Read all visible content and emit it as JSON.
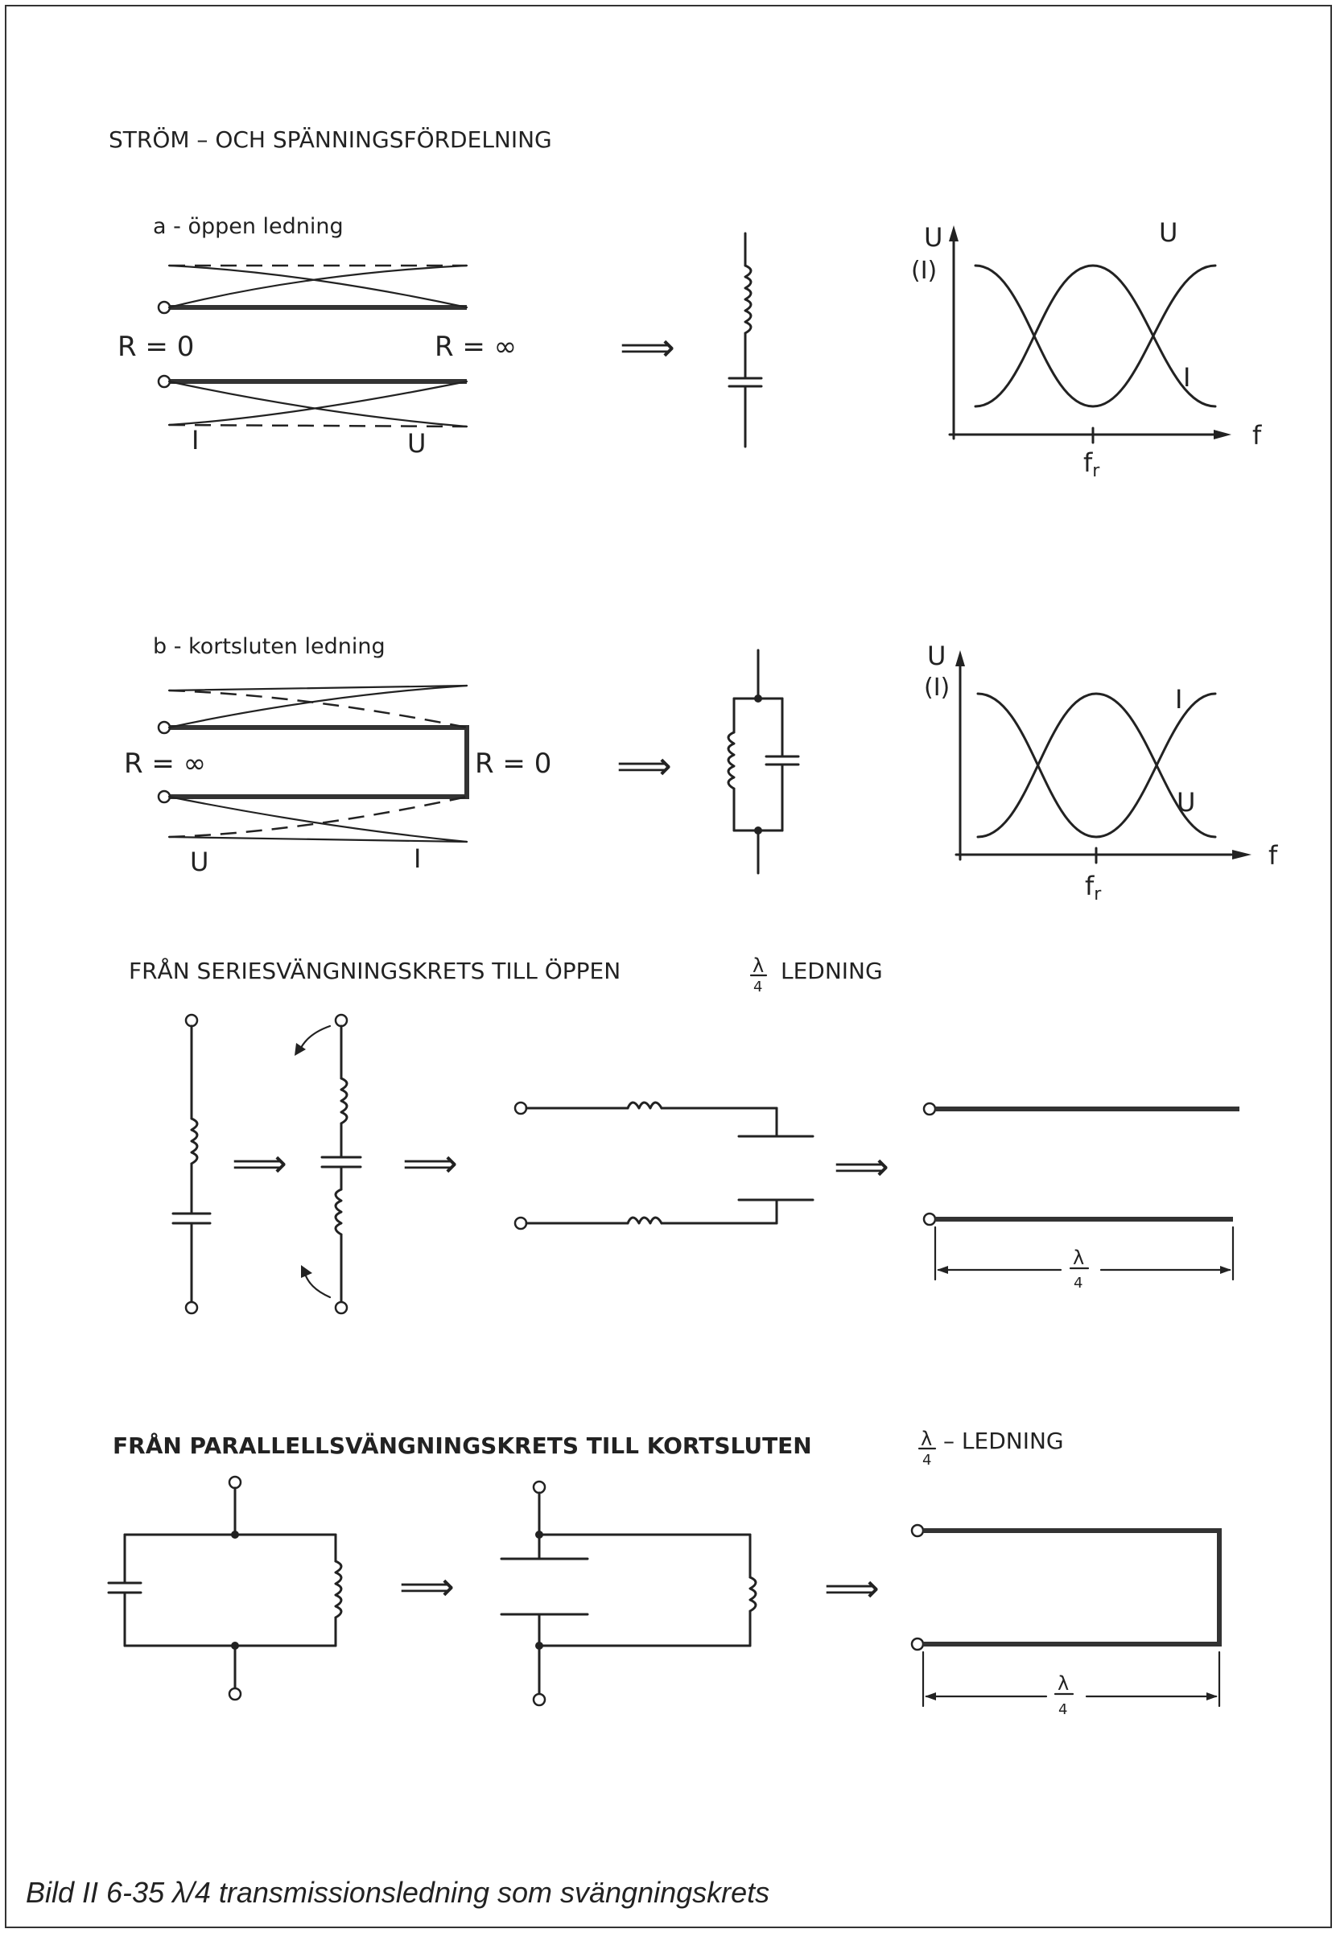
{
  "document": {
    "section_title": "STRÖM – OCH SPÄNNINGSFÖRDELNING",
    "part_a": {
      "label": "a - öppen ledning",
      "r_left": "R = 0",
      "r_right": "R = ∞",
      "bottom_left": "I",
      "bottom_right": "U",
      "graph": {
        "y_top": "U",
        "y_sub": "(I)",
        "x": "f",
        "fr": "f",
        "fr_sub": "r",
        "curve1": "U",
        "curve2": "I"
      }
    },
    "part_b": {
      "label": "b - kortsluten ledning",
      "r_left": "R = ∞",
      "r_right": "R = 0",
      "bottom_left": "U",
      "bottom_right": "I",
      "graph": {
        "y_top": "U",
        "y_sub": "(I)",
        "x": "f",
        "fr": "f",
        "fr_sub": "r",
        "curve1": "I",
        "curve2": "U"
      }
    },
    "series_title_pre": "FRÅN SERIESVÄNGNINGSKRETS TILL ÖPPEN",
    "series_title_post": "LEDNING",
    "parallel_title_pre": "FRÅN PARALLELLSVÄNGNINGSKRETS TILL KORTSLUTEN",
    "parallel_title_post": "– LEDNING",
    "lambda_num": "λ",
    "lambda_den": "4",
    "arrow_symbol": "⟹",
    "caption": "Bild II 6-35  λ/4 transmissionsledning som svängningskrets"
  }
}
